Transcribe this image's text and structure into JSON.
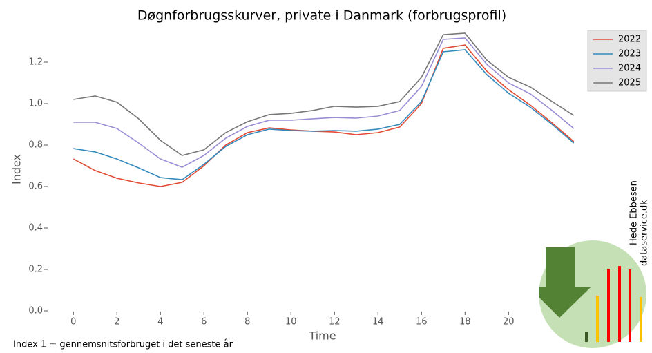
{
  "chart_data": {
    "type": "line",
    "title": "Døgnforbrugsskurver, private i Danmark (forbrugsprofil)",
    "x_label": "Time",
    "y_label": "Index",
    "footnote": "Index 1 = gennemsnitsforbruget i det seneste år",
    "watermark": [
      "Hede Ebbesen",
      "dataservice.dk"
    ],
    "x": [
      0,
      1,
      2,
      3,
      4,
      5,
      6,
      7,
      8,
      9,
      10,
      11,
      12,
      13,
      14,
      15,
      16,
      17,
      18,
      19,
      20,
      21,
      22,
      23
    ],
    "series": [
      {
        "name": "2022",
        "color": "#e24a33",
        "values": [
          0.733,
          0.677,
          0.64,
          0.617,
          0.6,
          0.62,
          0.7,
          0.8,
          0.86,
          0.883,
          0.873,
          0.867,
          0.863,
          0.85,
          0.86,
          0.887,
          1.0,
          1.267,
          1.283,
          1.157,
          1.067,
          0.993,
          0.907,
          0.817
        ]
      },
      {
        "name": "2023",
        "color": "#348abd",
        "values": [
          0.783,
          0.767,
          0.733,
          0.69,
          0.643,
          0.633,
          0.707,
          0.793,
          0.85,
          0.877,
          0.87,
          0.867,
          0.87,
          0.867,
          0.877,
          0.9,
          1.01,
          1.25,
          1.26,
          1.14,
          1.05,
          0.983,
          0.9,
          0.81
        ]
      },
      {
        "name": "2024",
        "color": "#988ed5",
        "values": [
          0.91,
          0.91,
          0.88,
          0.81,
          0.733,
          0.693,
          0.75,
          0.833,
          0.89,
          0.92,
          0.92,
          0.927,
          0.933,
          0.93,
          0.94,
          0.967,
          1.083,
          1.31,
          1.317,
          1.19,
          1.1,
          1.047,
          0.967,
          0.88
        ]
      },
      {
        "name": "2025",
        "color": "#777777",
        "values": [
          1.02,
          1.037,
          1.007,
          0.927,
          0.823,
          0.75,
          0.777,
          0.86,
          0.913,
          0.947,
          0.953,
          0.967,
          0.987,
          0.983,
          0.987,
          1.01,
          1.127,
          1.333,
          1.34,
          1.21,
          1.127,
          1.08,
          1.01,
          0.943
        ]
      }
    ],
    "xlim": [
      -1.15,
      24.15
    ],
    "ylim": [
      0,
      1.38
    ],
    "xticks": [
      0,
      2,
      4,
      6,
      8,
      10,
      12,
      14,
      16,
      18,
      20
    ],
    "yticks": [
      {
        "value": 0,
        "label": "0.0"
      },
      {
        "value": 0.2,
        "label": "0.2"
      },
      {
        "value": 0.4,
        "label": "0.4"
      },
      {
        "value": 0.6,
        "label": "0.6"
      },
      {
        "value": 0.8,
        "label": "0.8"
      },
      {
        "value": 1.0,
        "label": "1.0"
      },
      {
        "value": 1.2,
        "label": "1.2"
      }
    ],
    "legend": "upper right"
  }
}
